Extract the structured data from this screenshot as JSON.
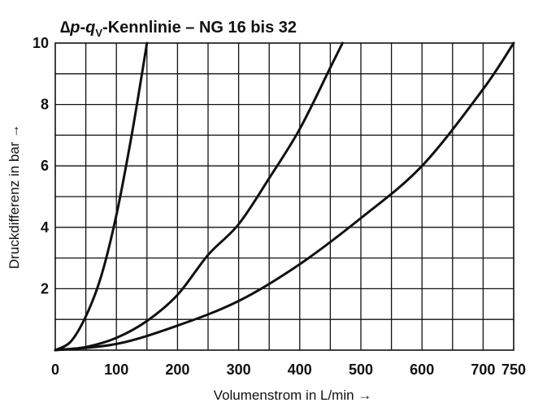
{
  "chart_data": {
    "type": "line",
    "title": {
      "delta": "∆",
      "p": "p",
      "dash": "-",
      "q": "q",
      "sub": "V",
      "rest": "-Kennlinie – NG 16 bis 32"
    },
    "xlabel": "Volumenstrom in L/min →",
    "ylabel": "Druckdifferenz in bar →",
    "xlim": [
      0,
      750
    ],
    "ylim": [
      0,
      10
    ],
    "x_ticks": [
      0,
      100,
      200,
      300,
      400,
      500,
      600,
      700,
      750
    ],
    "x_tick_labels": [
      "0",
      "100",
      "200",
      "300",
      "400",
      "500",
      "600",
      "700",
      "750"
    ],
    "y_ticks": [
      2,
      4,
      6,
      8,
      10
    ],
    "y_tick_labels": [
      "2",
      "4",
      "6",
      "8",
      "10"
    ],
    "x_grid_step": 50,
    "y_grid_step": 1,
    "grid": true,
    "series": [
      {
        "x": [
          0,
          25,
          50,
          75,
          100,
          125,
          150
        ],
        "y": [
          0,
          0.27,
          1.1,
          2.4,
          4.4,
          7.0,
          10.0
        ]
      },
      {
        "x": [
          0,
          50,
          100,
          150,
          200,
          250,
          300,
          350,
          400,
          450,
          470
        ],
        "y": [
          0,
          0.1,
          0.4,
          0.95,
          1.8,
          3.1,
          4.1,
          5.6,
          7.2,
          9.2,
          10.0
        ]
      },
      {
        "x": [
          0,
          100,
          200,
          300,
          400,
          500,
          600,
          700,
          750
        ],
        "y": [
          0,
          0.2,
          0.8,
          1.6,
          2.8,
          4.3,
          6.0,
          8.5,
          10.0
        ]
      }
    ]
  }
}
